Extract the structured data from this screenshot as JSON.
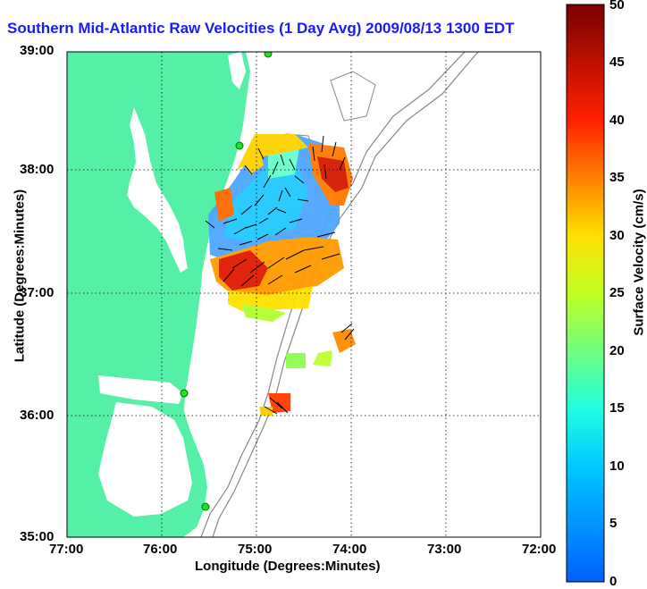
{
  "title": "Southern Mid-Atlantic Raw Velocities (1 Day Avg) 2009/08/13 1300 EDT",
  "title_faded": "EDT",
  "map": {
    "xlabel": "Longitude (Degrees:Minutes)",
    "ylabel": "Latitude (Degrees:Minutes)",
    "x_ticks": [
      "77:00",
      "76:00",
      "75:00",
      "74:00",
      "73:00",
      "72:00"
    ],
    "y_ticks": [
      "39:00",
      "38:00",
      "37:00",
      "36:00",
      "35:00"
    ],
    "lon_range": [
      -77.0,
      -72.0
    ],
    "lat_range": [
      35.0,
      39.0
    ],
    "grid": "dotted",
    "land_color": "#55f0a8",
    "water_color": "#ffffff",
    "bathymetry_color": "#888888"
  },
  "colorbar": {
    "label": "Surface Velocity (cm/s)",
    "ticks": [
      "0",
      "5",
      "10",
      "15",
      "20",
      "25",
      "30",
      "35",
      "40",
      "45",
      "50"
    ],
    "range": [
      0,
      50
    ],
    "colormap": "jet"
  }
}
